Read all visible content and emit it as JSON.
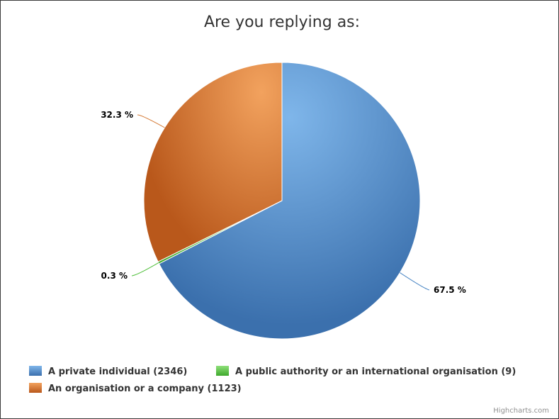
{
  "chart_data": {
    "type": "pie",
    "title": "Are you replying as:",
    "slices": [
      {
        "name": "A private individual",
        "count": 2346,
        "legend_label": "A private individual (2346)",
        "percent_label": "67.5 %",
        "color": "#4a86c4"
      },
      {
        "name": "A public authority or an international organisation",
        "count": 9,
        "legend_label": "A public authority or an international organisation (9)",
        "percent_label": "0.3 %",
        "color": "#4fbf3a"
      },
      {
        "name": "An organisation or a company",
        "count": 1123,
        "legend_label": "An organisation or a company (1123)",
        "percent_label": "32.3 %",
        "color": "#d57a35"
      }
    ],
    "legend_position": "bottom",
    "credits": "Highcharts.com"
  }
}
